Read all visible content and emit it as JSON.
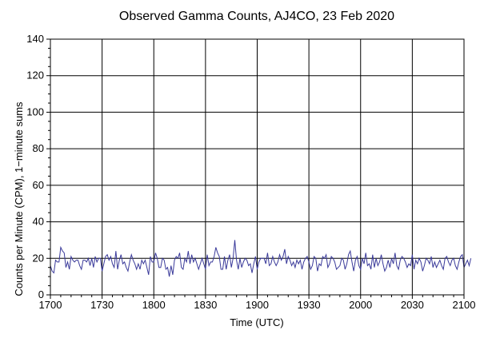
{
  "chart_data": {
    "type": "line",
    "title": "Observed Gamma Counts, AJ4CO, 23 Feb 2020",
    "xlabel": "Time (UTC)",
    "ylabel": "Counts per Minute (CPM), 1−minute sums",
    "x_tick_labels": [
      "1700",
      "1730",
      "1800",
      "1830",
      "1900",
      "1930",
      "2000",
      "2030",
      "2100"
    ],
    "y_tick_labels": [
      "0",
      "20",
      "40",
      "60",
      "80",
      "100",
      "120",
      "140"
    ],
    "x_ticks_minutes_since_1700": [
      0,
      30,
      60,
      90,
      120,
      150,
      180,
      210,
      240
    ],
    "xlim_minutes_since_1700": [
      0,
      240
    ],
    "ylim": [
      0,
      140
    ],
    "grid": true,
    "line_color": "#3a3a9a",
    "series": [
      {
        "x_start_minutes_since_1700": 0,
        "x_step_minutes": 1,
        "values": [
          16,
          13,
          12,
          19,
          18,
          18,
          26,
          24,
          23,
          15,
          18,
          14,
          21,
          19,
          18,
          19,
          19,
          16,
          14,
          19,
          19,
          18,
          20,
          16,
          20,
          15,
          21,
          18,
          20,
          20,
          13,
          17,
          21,
          22,
          19,
          21,
          17,
          15,
          24,
          14,
          19,
          22,
          17,
          18,
          15,
          13,
          18,
          22,
          19,
          17,
          14,
          17,
          14,
          19,
          17,
          19,
          15,
          11,
          21,
          18,
          18,
          23,
          20,
          15,
          15,
          20,
          19,
          14,
          15,
          10,
          16,
          11,
          19,
          21,
          20,
          23,
          15,
          14,
          20,
          18,
          24,
          17,
          22,
          18,
          20,
          17,
          14,
          17,
          20,
          17,
          14,
          22,
          16,
          18,
          18,
          21,
          26,
          23,
          21,
          14,
          14,
          21,
          14,
          19,
          22,
          15,
          20,
          30,
          19,
          14,
          20,
          15,
          18,
          20,
          19,
          16,
          17,
          12,
          17,
          21,
          14,
          18,
          20,
          20,
          20,
          17,
          23,
          16,
          17,
          21,
          18,
          16,
          18,
          22,
          19,
          21,
          25,
          17,
          21,
          19,
          16,
          18,
          15,
          19,
          17,
          19,
          14,
          18,
          20,
          21,
          18,
          14,
          16,
          21,
          20,
          13,
          17,
          16,
          21,
          20,
          22,
          15,
          17,
          21,
          20,
          18,
          14,
          15,
          16,
          20,
          19,
          14,
          17,
          22,
          24,
          18,
          13,
          19,
          21,
          16,
          14,
          20,
          17,
          23,
          16,
          17,
          14,
          22,
          15,
          20,
          16,
          18,
          22,
          17,
          13,
          15,
          19,
          15,
          20,
          17,
          23,
          16,
          14,
          19,
          21,
          20,
          18,
          15,
          17,
          16,
          22,
          14,
          19,
          17,
          20,
          18,
          13,
          16,
          20,
          19,
          17,
          21,
          15,
          18,
          15,
          17,
          19,
          16,
          14,
          20,
          21,
          18,
          16,
          19,
          20,
          16,
          14,
          18,
          21,
          22,
          15,
          17,
          19,
          16,
          20
        ]
      }
    ]
  }
}
